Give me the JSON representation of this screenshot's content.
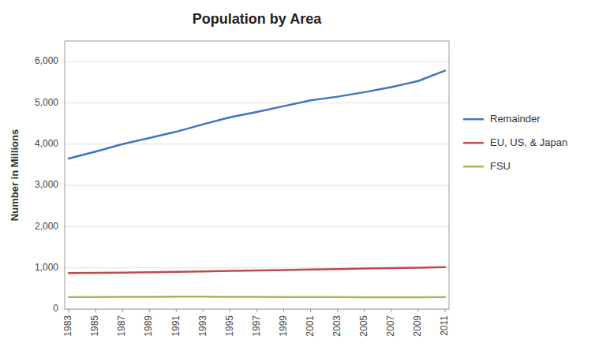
{
  "chart_data": {
    "type": "line",
    "title": "Population by Area",
    "ylabel": "Number in Millions",
    "x": [
      1983,
      1985,
      1987,
      1989,
      1991,
      1993,
      1995,
      1997,
      1999,
      2001,
      2003,
      2005,
      2007,
      2009,
      2011
    ],
    "xlim": [
      1982.7,
      2011.3
    ],
    "xticks": [
      1983,
      1985,
      1987,
      1989,
      1991,
      1993,
      1995,
      1997,
      1999,
      2001,
      2003,
      2005,
      2007,
      2009,
      2011
    ],
    "series": [
      {
        "name": "Remainder",
        "color": "#4472C4",
        "values": [
          3650,
          3820,
          4000,
          4150,
          4300,
          4480,
          4650,
          4780,
          4920,
          5060,
          5150,
          5260,
          5380,
          5530,
          5780
        ]
      },
      {
        "name": "EU, US, & Japan",
        "color": "#BE4B48",
        "values": [
          875,
          880,
          885,
          895,
          905,
          915,
          925,
          935,
          945,
          960,
          970,
          985,
          995,
          1005,
          1020
        ]
      },
      {
        "name": "FSU",
        "color": "#9BBB59",
        "values": [
          290,
          292,
          295,
          298,
          300,
          300,
          298,
          296,
          293,
          291,
          290,
          289,
          288,
          287,
          290
        ]
      }
    ],
    "ylim": [
      0,
      6500
    ],
    "yticks": [
      0,
      {
        "value": 1000,
        "label": "1,000"
      },
      {
        "value": 2000,
        "label": "2,000"
      },
      {
        "value": 3000,
        "label": "3,000"
      },
      {
        "value": 4000,
        "label": "4,000"
      },
      {
        "value": 5000,
        "label": "5,000"
      },
      {
        "value": 6000,
        "label": "6,000"
      }
    ],
    "grid": true,
    "legend": "right"
  }
}
